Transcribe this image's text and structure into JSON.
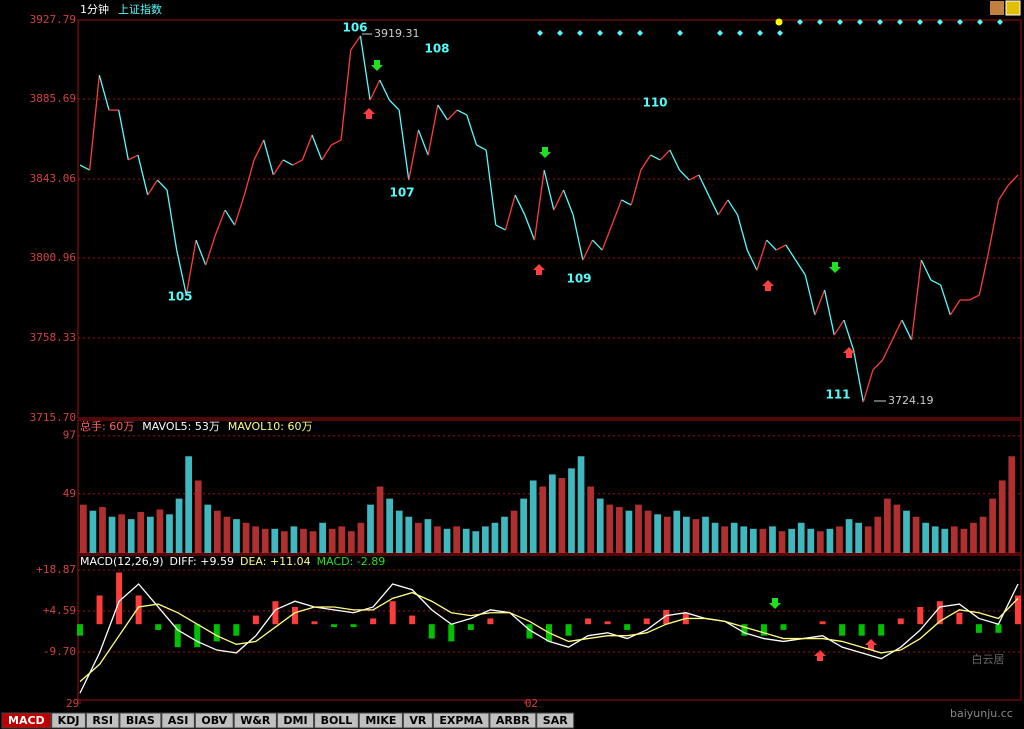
{
  "header": {
    "period": "1分钟",
    "index_name": "上证指数"
  },
  "chart_data": [
    {
      "type": "line",
      "name": "price",
      "ylim": [
        3715.7,
        3927.79
      ],
      "yticks": [
        3927.79,
        3885.69,
        3843.06,
        3800.96,
        3758.33,
        {
          "value": 3715.7,
          "label": "3715.70"
        }
      ],
      "grid": true,
      "up_color": "#ff3c3c",
      "down_color": "#54fcfc",
      "values": [
        3850.5,
        3847.8,
        3898.4,
        3879.8,
        3879.8,
        3853.2,
        3855.8,
        3834.5,
        3842.5,
        3837.2,
        3805.2,
        3781.2,
        3810.5,
        3797.2,
        3813.2,
        3826.5,
        3818.5,
        3834.5,
        3853.2,
        3863.8,
        3845.2,
        3853.2,
        3850.5,
        3853.2,
        3866.5,
        3853.2,
        3861.2,
        3863.8,
        3911.8,
        3919.3,
        3885.1,
        3895.8,
        3885.1,
        3879.8,
        3842.5,
        3869.2,
        3855.8,
        3882.5,
        3874.5,
        3879.8,
        3877.2,
        3861.2,
        3858.5,
        3818.5,
        3815.9,
        3834.5,
        3823.9,
        3810.5,
        3847.8,
        3826.5,
        3837.2,
        3823.9,
        3799.9,
        3810.5,
        3805.2,
        3818.5,
        3831.9,
        3829.2,
        3847.8,
        3855.8,
        3853.2,
        3858.5,
        3847.8,
        3842.5,
        3845.2,
        3834.5,
        3823.9,
        3831.9,
        3823.9,
        3805.2,
        3794.5,
        3810.5,
        3805.2,
        3807.9,
        3799.9,
        3791.9,
        3770.6,
        3783.9,
        3759.9,
        3767.9,
        3751.9,
        3724.2,
        3741.3,
        3746.6,
        3757.3,
        3767.9,
        3757.3,
        3799.9,
        3789.2,
        3786.6,
        3770.6,
        3778.6,
        3778.6,
        3781.2,
        3805.2,
        3831.9,
        3839.8,
        3845.2
      ],
      "high": 3919.31,
      "low": 3724.19,
      "wave_labels": [
        "105",
        "106",
        "107",
        "108",
        "109",
        "110",
        "111"
      ]
    },
    {
      "type": "bar",
      "name": "volume",
      "legend": [
        "总手: 60万",
        "MAVOL5: 53万",
        "MAVOL10: 60万"
      ],
      "ylim": [
        0,
        110
      ],
      "yticks": [
        49,
        97
      ],
      "grid": true,
      "values": [
        40,
        35,
        38,
        30,
        32,
        28,
        34,
        30,
        36,
        32,
        45,
        80,
        60,
        40,
        35,
        30,
        28,
        25,
        22,
        20,
        20,
        18,
        22,
        20,
        18,
        25,
        20,
        22,
        18,
        25,
        40,
        55,
        45,
        35,
        30,
        25,
        28,
        22,
        20,
        22,
        20,
        18,
        22,
        25,
        30,
        35,
        45,
        60,
        55,
        65,
        62,
        70,
        80,
        55,
        45,
        40,
        38,
        35,
        40,
        35,
        32,
        30,
        35,
        30,
        28,
        30,
        25,
        22,
        25,
        22,
        20,
        20,
        22,
        18,
        20,
        25,
        20,
        18,
        20,
        22,
        28,
        25,
        22,
        30,
        45,
        40,
        35,
        30,
        25,
        22,
        20,
        22,
        20,
        25,
        30,
        45,
        60,
        80
      ]
    },
    {
      "type": "macd",
      "legend": [
        "MACD(12,26,9)",
        "DIFF: +9.59",
        "DEA: +11.04",
        "MACD: -2.89"
      ],
      "ylim": [
        -26.4,
        24.1
      ],
      "yticks": [
        {
          "value": 18.87,
          "label": "+18.87"
        },
        {
          "value": 4.59,
          "label": "+4.59"
        },
        {
          "value": -9.7,
          "label": "-9.70"
        }
      ],
      "grid": true,
      "series": [
        {
          "name": "DIFF",
          "color": "#ffffff",
          "values": [
            -24,
            -10,
            8,
            14,
            6,
            -2,
            -6,
            -9,
            -10,
            -4,
            5,
            8,
            6,
            5,
            4,
            6,
            14,
            12,
            5,
            0,
            2,
            5,
            4,
            -2,
            -6,
            -8,
            -4,
            -3,
            -5,
            -2,
            3,
            4,
            2,
            1,
            -3,
            -5,
            -6,
            -5,
            -4,
            -8,
            -10,
            -12,
            -8,
            -2,
            6,
            7,
            2,
            0,
            14
          ]
        },
        {
          "name": "DEA",
          "color": "#ffff80",
          "values": [
            -20,
            -14,
            -4,
            6,
            7,
            4,
            0,
            -4,
            -7,
            -6,
            -1,
            4,
            6,
            6,
            5,
            5,
            9,
            11,
            8,
            4,
            3,
            4,
            4,
            1,
            -3,
            -6,
            -5,
            -4,
            -4,
            -3,
            0,
            2,
            2,
            1,
            -1,
            -3,
            -5,
            -5,
            -5,
            -6,
            -8,
            -10,
            -9,
            -5,
            1,
            5,
            4,
            2,
            9
          ]
        },
        {
          "name": "MACD",
          "color": "#ff3c3c",
          "neg_color": "#00c000",
          "values": [
            -4,
            10,
            18,
            10,
            -2,
            -8,
            -8,
            -6,
            -4,
            3,
            8,
            6,
            1,
            -1,
            -1,
            2,
            8,
            3,
            -5,
            -6,
            -2,
            2,
            0,
            -5,
            -6,
            -4,
            2,
            1,
            -2,
            2,
            5,
            4,
            0,
            0,
            -4,
            -4,
            -2,
            0,
            1,
            -4,
            -4,
            -4,
            2,
            6,
            8,
            4,
            -3,
            -3,
            10
          ]
        }
      ],
      "xticks": [
        {
          "value": 0,
          "label": "29"
        },
        {
          "value": 46,
          "label": "02"
        }
      ]
    }
  ],
  "tabs": [
    "MACD",
    "KDJ",
    "RSI",
    "BIAS",
    "ASI",
    "OBV",
    "W&R",
    "DMI",
    "BOLL",
    "MIKE",
    "VR",
    "EXPMA",
    "ARBR",
    "SAR"
  ],
  "watermark": {
    "name": "白云居",
    "site": "baiyunju.cc"
  }
}
